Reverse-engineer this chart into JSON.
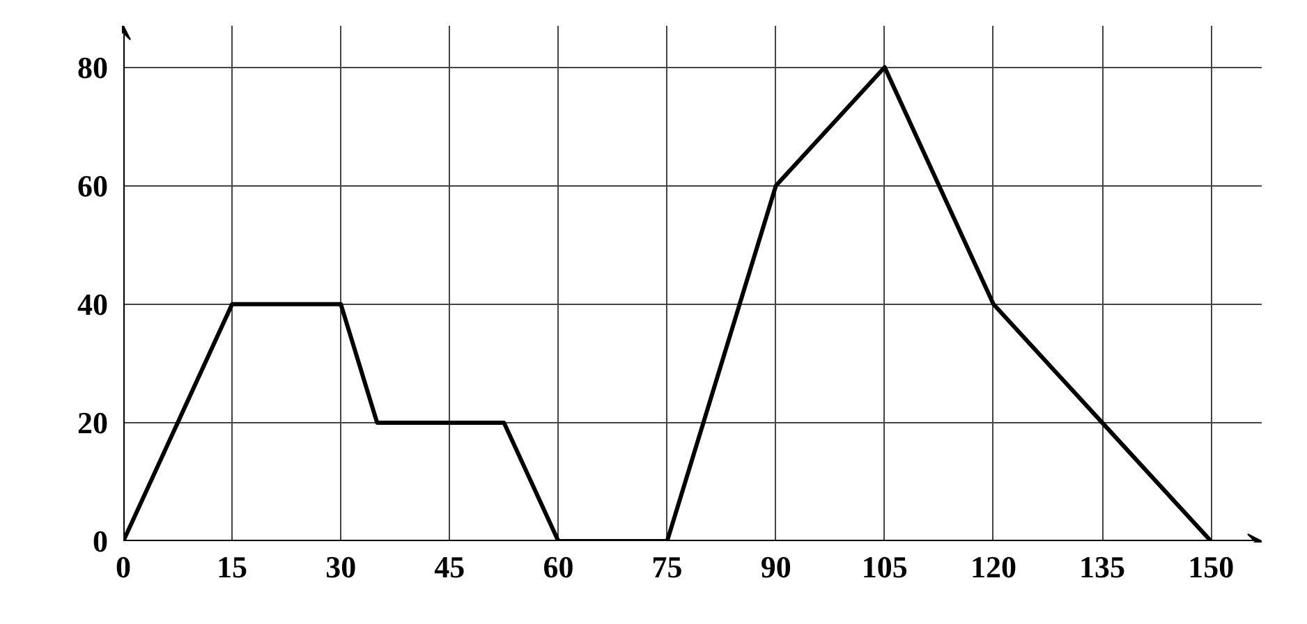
{
  "chart_data": {
    "type": "line",
    "x": [
      0,
      15,
      30,
      35,
      52.5,
      60,
      75,
      90,
      105,
      120,
      135,
      150
    ],
    "series": [
      {
        "color": "#000000",
        "values": [
          0,
          40,
          40,
          20,
          20,
          0,
          0,
          60,
          80,
          40,
          20,
          0
        ]
      }
    ],
    "xlim": [
      0,
      157
    ],
    "ylim": [
      0,
      87
    ],
    "xticks": [
      0,
      15,
      30,
      45,
      60,
      75,
      90,
      105,
      120,
      135,
      150
    ],
    "yticks": [
      0,
      20,
      40,
      60,
      80
    ],
    "grid": true,
    "marker": "none",
    "line_style": "solid"
  }
}
